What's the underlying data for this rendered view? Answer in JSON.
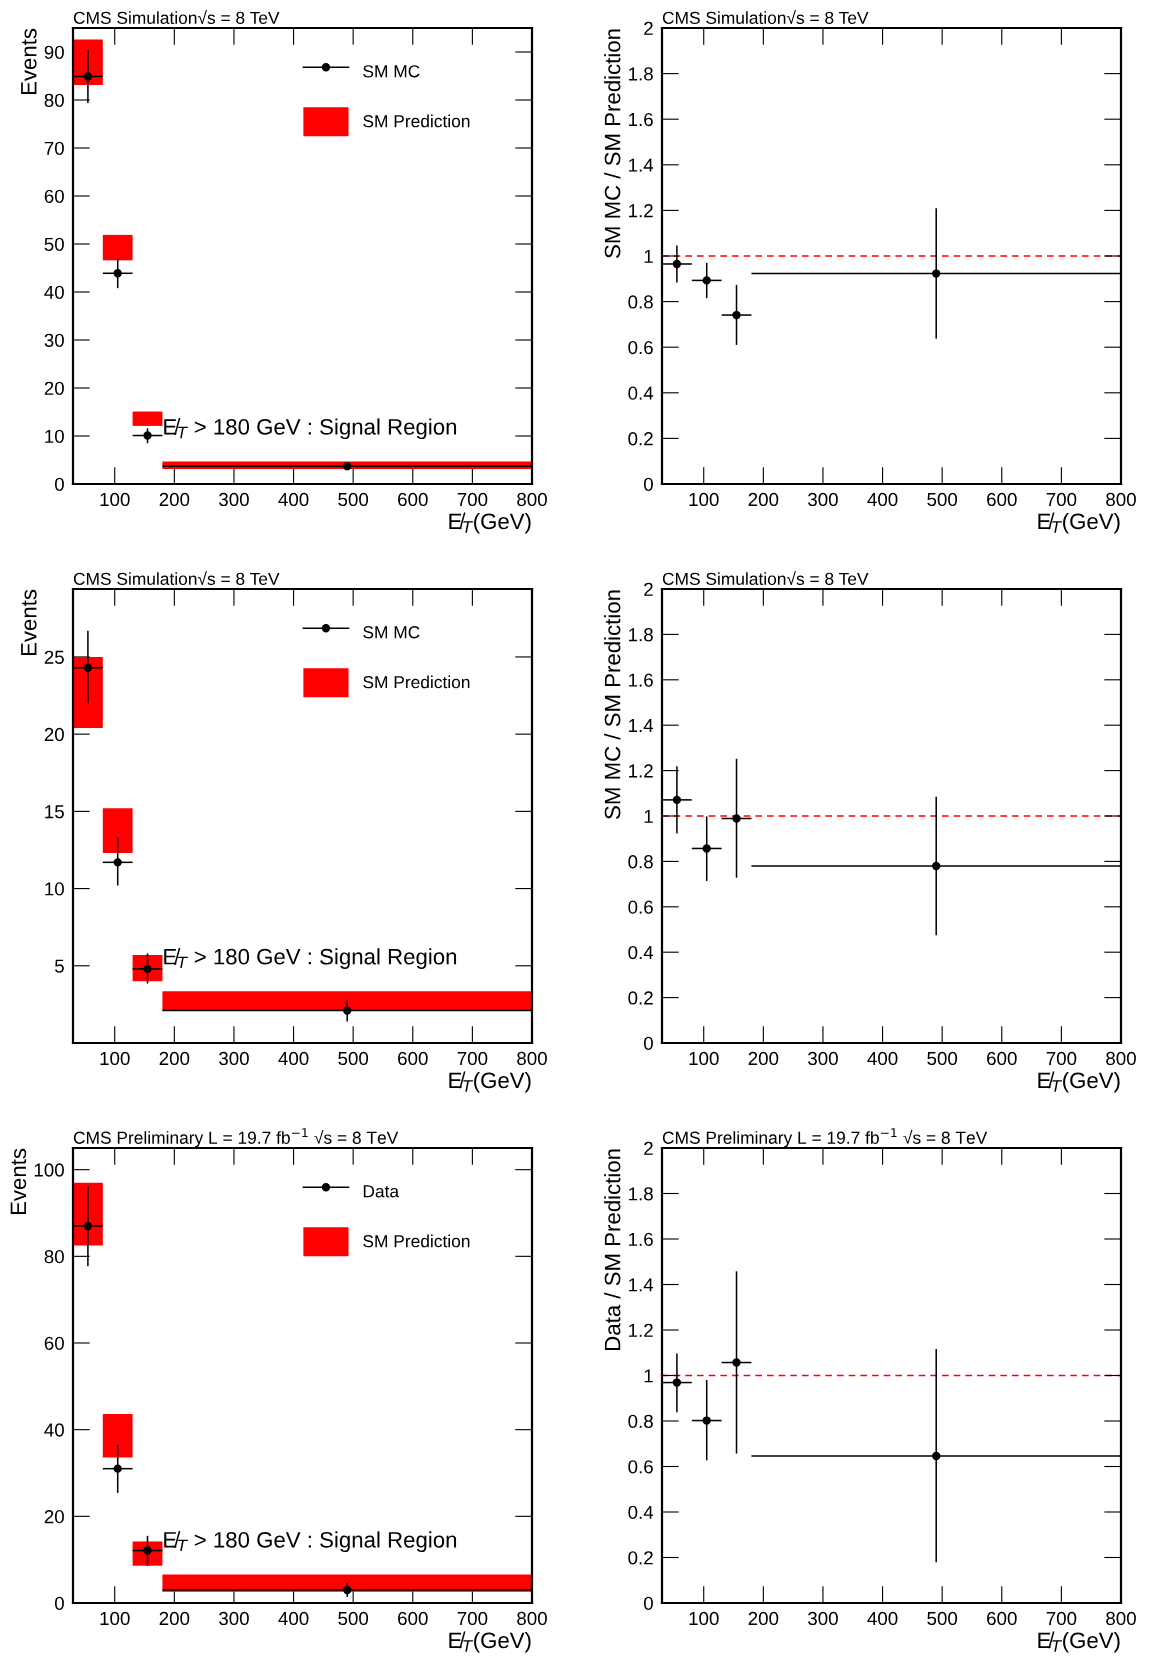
{
  "chart_data": [
    {
      "type": "scatter",
      "title": "CMS Simulation√s = 8 TeV",
      "xlabel": "E̸$_{T}$(GeV)",
      "ylabel": "Events",
      "xlim": [
        30,
        800
      ],
      "xticks": [
        100,
        200,
        300,
        400,
        500,
        600,
        700,
        800
      ],
      "ylim": [
        0,
        95
      ],
      "yticks": [
        0,
        10,
        20,
        30,
        40,
        50,
        60,
        70,
        80,
        90
      ],
      "legend": "top right",
      "annotations": [
        "E̸$_{T}$ > 180 GeV : Signal Region"
      ],
      "series": [
        {
          "name": "SM Prediction",
          "type": "histogram",
          "color": "#ff0000",
          "bins": [
            30,
            80,
            130,
            180,
            800
          ],
          "base": [
            83.1,
            46.6,
            12.1,
            3.1
          ],
          "values": [
            9.5,
            5.3,
            3.0,
            1.6
          ]
        },
        {
          "name": "SM MC",
          "color": "#000000",
          "marker": "circle",
          "x": [
            55,
            105,
            155,
            490
          ],
          "values": [
            84.9,
            43.9,
            10.1,
            3.7
          ],
          "errors": [
            [
              79.4,
              90.4
            ],
            [
              40.8,
              47.0
            ],
            [
              8.5,
              11.6
            ],
            [
              2.9,
              4.4
            ]
          ],
          "xerrors": [
            25,
            25,
            25,
            310
          ]
        }
      ]
    },
    {
      "type": "scatter",
      "title": "CMS Simulation√s = 8 TeV",
      "xlabel": "E̸$_{T}$(GeV)",
      "ylabel": "SM MC / SM Prediction",
      "xlim": [
        30,
        800
      ],
      "xticks": [
        100,
        200,
        300,
        400,
        500,
        600,
        700,
        800
      ],
      "ylim": [
        0,
        2
      ],
      "yticks": [
        0,
        0.2,
        0.4,
        0.6,
        0.8,
        1,
        1.2,
        1.4,
        1.6,
        1.8,
        2
      ],
      "ref_lines": [
        {
          "axis": "y",
          "value": 1,
          "color": "#ff0000",
          "line_style": "dashed"
        }
      ],
      "series": [
        {
          "color": "#000000",
          "marker": "circle",
          "x": [
            55,
            105,
            155,
            490
          ],
          "values": [
            0.965,
            0.893,
            0.741,
            0.923
          ],
          "errors": [
            [
              0.884,
              1.046
            ],
            [
              0.815,
              0.97
            ],
            [
              0.61,
              0.873
            ],
            [
              0.637,
              1.209
            ]
          ],
          "xerrors": [
            25,
            25,
            25,
            310
          ]
        }
      ]
    },
    {
      "type": "scatter",
      "title": "CMS Simulation√s = 8 TeV",
      "xlabel": "E̸$_{T}$(GeV)",
      "ylabel": "Events",
      "xlim": [
        30,
        800
      ],
      "xticks": [
        100,
        200,
        300,
        400,
        500,
        600,
        700,
        800
      ],
      "ylim": [
        0,
        29.4
      ],
      "yticks": [
        5,
        10,
        15,
        20,
        25
      ],
      "legend": "top right",
      "annotations": [
        "E̸$_{T}$ > 180 GeV : Signal Region"
      ],
      "series": [
        {
          "name": "SM Prediction",
          "type": "histogram",
          "color": "#ff0000",
          "bins": [
            30,
            80,
            130,
            180,
            800
          ],
          "base": [
            20.4,
            12.3,
            4.0,
            2.1
          ],
          "values": [
            4.6,
            2.9,
            1.7,
            1.25
          ]
        },
        {
          "name": "SM MC",
          "color": "#000000",
          "marker": "circle",
          "x": [
            55,
            105,
            155,
            490
          ],
          "values": [
            24.3,
            11.7,
            4.8,
            2.1
          ],
          "errors": [
            [
              22.0,
              26.7
            ],
            [
              10.2,
              13.3
            ],
            [
              3.85,
              5.8
            ],
            [
              1.4,
              2.8
            ]
          ],
          "xerrors": [
            25,
            25,
            25,
            310
          ]
        }
      ]
    },
    {
      "type": "scatter",
      "title": "CMS Simulation√s = 8 TeV",
      "xlabel": "E̸$_{T}$(GeV)",
      "ylabel": "SM MC / SM Prediction",
      "xlim": [
        30,
        800
      ],
      "xticks": [
        100,
        200,
        300,
        400,
        500,
        600,
        700,
        800
      ],
      "ylim": [
        0,
        2
      ],
      "yticks": [
        0,
        0.2,
        0.4,
        0.6,
        0.8,
        1,
        1.2,
        1.4,
        1.6,
        1.8,
        2
      ],
      "ref_lines": [
        {
          "axis": "y",
          "value": 1,
          "color": "#ff0000",
          "line_style": "dashed"
        }
      ],
      "series": [
        {
          "color": "#000000",
          "marker": "circle",
          "x": [
            55,
            105,
            155,
            490
          ],
          "values": [
            1.071,
            0.857,
            0.989,
            0.78
          ],
          "errors": [
            [
              0.923,
              1.219
            ],
            [
              0.714,
              0.998
            ],
            [
              0.728,
              1.252
            ],
            [
              0.475,
              1.085
            ]
          ],
          "xerrors": [
            25,
            25,
            25,
            310
          ]
        }
      ]
    },
    {
      "type": "scatter",
      "title": "CMS Preliminary L = 19.7 fb$^{−1}$ √s = 8 TeV",
      "xlabel": "E̸$_{T}$(GeV)",
      "ylabel": "Events",
      "xlim": [
        30,
        800
      ],
      "xticks": [
        100,
        200,
        300,
        400,
        500,
        600,
        700,
        800
      ],
      "ylim": [
        0,
        105
      ],
      "yticks": [
        0,
        20,
        40,
        60,
        80,
        100
      ],
      "legend": "top right",
      "annotations": [
        "E̸$_{T}$ > 180 GeV : Signal Region"
      ],
      "series": [
        {
          "name": "SM Prediction",
          "type": "histogram",
          "color": "#ff0000",
          "bins": [
            30,
            80,
            130,
            180,
            800
          ],
          "base": [
            82.5,
            33.6,
            8.6,
            2.6
          ],
          "values": [
            14.5,
            10.0,
            5.6,
            4.0
          ]
        },
        {
          "name": "Data",
          "color": "#000000",
          "marker": "circle",
          "x": [
            55,
            105,
            155,
            490
          ],
          "values": [
            87.0,
            31.0,
            12.1,
            3.0
          ],
          "errors": [
            [
              77.7,
              96.2
            ],
            [
              25.4,
              36.5
            ],
            [
              8.6,
              15.5
            ],
            [
              1.4,
              4.7
            ]
          ],
          "xerrors": [
            25,
            25,
            25,
            310
          ]
        }
      ]
    },
    {
      "type": "scatter",
      "title": "CMS Preliminary L = 19.7 fb$^{−1}$ √s = 8 TeV",
      "xlabel": "E̸$_{T}$(GeV)",
      "ylabel": "Data / SM Prediction",
      "xlim": [
        30,
        800
      ],
      "xticks": [
        100,
        200,
        300,
        400,
        500,
        600,
        700,
        800
      ],
      "ylim": [
        0,
        2
      ],
      "yticks": [
        0,
        0.2,
        0.4,
        0.6,
        0.8,
        1,
        1.2,
        1.4,
        1.6,
        1.8,
        2
      ],
      "ref_lines": [
        {
          "axis": "y",
          "value": 1,
          "color": "#ff0000",
          "line_style": "dashed"
        }
      ],
      "series": [
        {
          "color": "#000000",
          "marker": "circle",
          "x": [
            55,
            105,
            155,
            490
          ],
          "values": [
            0.969,
            0.802,
            1.057,
            0.646
          ],
          "errors": [
            [
              0.838,
              1.097
            ],
            [
              0.627,
              0.98
            ],
            [
              0.657,
              1.458
            ],
            [
              0.179,
              1.116
            ]
          ],
          "xerrors": [
            25,
            25,
            25,
            310
          ]
        }
      ]
    }
  ]
}
